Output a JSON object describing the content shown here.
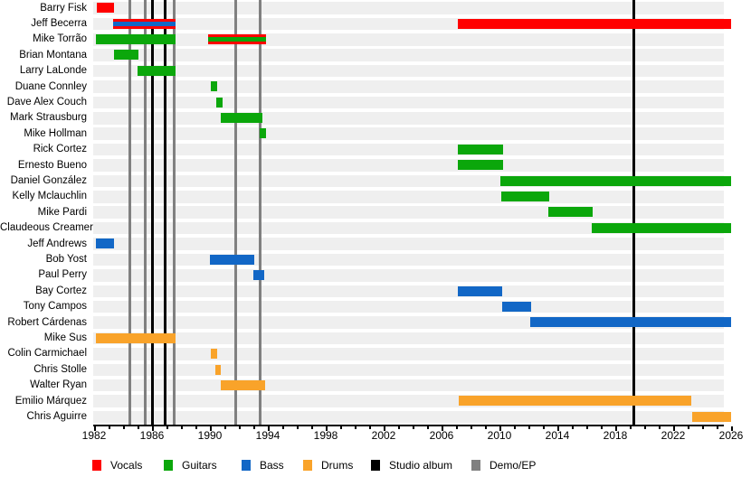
{
  "chart_data": {
    "type": "timeline",
    "description": "Band members timeline (gantt-style) with instrument roles and release event lines",
    "axis": {
      "min": 1982,
      "max": 2026,
      "minor_step": 1,
      "major_step": 4,
      "tick_labels": [
        "1982",
        "1986",
        "1990",
        "1994",
        "1998",
        "2002",
        "2006",
        "2010",
        "2014",
        "2018",
        "2022",
        "2026"
      ]
    },
    "legend": [
      {
        "role": "vocals",
        "label": "Vocals",
        "color": "#ff0000"
      },
      {
        "role": "guitars",
        "label": "Guitars",
        "color": "#0ba70b"
      },
      {
        "role": "bass",
        "label": "Bass",
        "color": "#1267c6"
      },
      {
        "role": "drums",
        "label": "Drums",
        "color": "#f9a32a"
      },
      {
        "role": "studio_album",
        "label": "Studio album",
        "color": "#000000"
      },
      {
        "role": "demo_ep",
        "label": "Demo/EP",
        "color": "#808080"
      }
    ],
    "members": [
      {
        "name": "Barry Fisk",
        "periods": [
          {
            "role": "vocals",
            "start": 1982.2,
            "end": 1983.4
          }
        ]
      },
      {
        "name": "Jeff Becerra",
        "periods": [
          {
            "role": "vocals",
            "stripe": "bass",
            "start": 1983.3,
            "end": 1987.6
          },
          {
            "role": "vocals",
            "start": 2007.15,
            "end": 2026,
            "open_end": true
          }
        ]
      },
      {
        "name": "Mike Torrão",
        "periods": [
          {
            "role": "guitars",
            "start": 1982.1,
            "end": 1987.6
          },
          {
            "role": "vocals",
            "stripe": "guitars",
            "start": 1989.9,
            "end": 1993.9
          }
        ]
      },
      {
        "name": "Brian Montana",
        "periods": [
          {
            "role": "guitars",
            "start": 1983.4,
            "end": 1985.05
          }
        ]
      },
      {
        "name": "Larry LaLonde",
        "periods": [
          {
            "role": "guitars",
            "start": 1985.0,
            "end": 1987.6
          }
        ]
      },
      {
        "name": "Duane Connley",
        "periods": [
          {
            "role": "guitars",
            "start": 1990.05,
            "end": 1990.5
          }
        ]
      },
      {
        "name": "Dave Alex Couch",
        "periods": [
          {
            "role": "guitars",
            "start": 1990.45,
            "end": 1990.85
          }
        ]
      },
      {
        "name": "Mark Strausburg",
        "periods": [
          {
            "role": "guitars",
            "start": 1990.75,
            "end": 1993.6
          }
        ]
      },
      {
        "name": "Mike Hollman",
        "periods": [
          {
            "role": "guitars",
            "start": 1993.45,
            "end": 1993.9
          }
        ]
      },
      {
        "name": "Rick Cortez",
        "periods": [
          {
            "role": "guitars",
            "start": 2007.15,
            "end": 2010.25
          }
        ]
      },
      {
        "name": "Ernesto Bueno",
        "periods": [
          {
            "role": "guitars",
            "start": 2007.15,
            "end": 2010.25
          }
        ]
      },
      {
        "name": "Daniel González",
        "periods": [
          {
            "role": "guitars",
            "start": 2010.05,
            "end": 2026,
            "open_end": true
          }
        ]
      },
      {
        "name": "Kelly Mclauchlin",
        "periods": [
          {
            "role": "guitars",
            "start": 2010.1,
            "end": 2013.45
          }
        ]
      },
      {
        "name": "Mike Pardi",
        "periods": [
          {
            "role": "guitars",
            "start": 2013.35,
            "end": 2016.45
          }
        ]
      },
      {
        "name": "Claudeous Creamer",
        "periods": [
          {
            "role": "guitars",
            "start": 2016.4,
            "end": 2026,
            "open_end": true
          }
        ]
      },
      {
        "name": "Jeff Andrews",
        "periods": [
          {
            "role": "bass",
            "start": 1982.1,
            "end": 1983.4
          }
        ]
      },
      {
        "name": "Bob Yost",
        "periods": [
          {
            "role": "bass",
            "start": 1990.0,
            "end": 1993.05
          }
        ]
      },
      {
        "name": "Paul Perry",
        "periods": [
          {
            "role": "bass",
            "start": 1993.0,
            "end": 1993.75
          }
        ]
      },
      {
        "name": "Bay Cortez",
        "periods": [
          {
            "role": "bass",
            "start": 2007.15,
            "end": 2010.2
          }
        ]
      },
      {
        "name": "Tony Campos",
        "periods": [
          {
            "role": "bass",
            "start": 2010.2,
            "end": 2012.2
          }
        ]
      },
      {
        "name": "Robert Cárdenas",
        "periods": [
          {
            "role": "bass",
            "start": 2012.15,
            "end": 2026,
            "open_end": true
          }
        ]
      },
      {
        "name": "Mike Sus",
        "periods": [
          {
            "role": "drums",
            "start": 1982.1,
            "end": 1987.6
          }
        ]
      },
      {
        "name": "Colin Carmichael",
        "periods": [
          {
            "role": "drums",
            "start": 1990.05,
            "end": 1990.5
          }
        ]
      },
      {
        "name": "Chris Stolle",
        "periods": [
          {
            "role": "drums",
            "start": 1990.4,
            "end": 1990.75
          }
        ]
      },
      {
        "name": "Walter Ryan",
        "periods": [
          {
            "role": "drums",
            "start": 1990.75,
            "end": 1993.8
          }
        ]
      },
      {
        "name": "Emilio Márquez",
        "periods": [
          {
            "role": "drums",
            "start": 2007.2,
            "end": 2023.25
          }
        ]
      },
      {
        "name": "Chris Aguirre",
        "periods": [
          {
            "role": "drums",
            "start": 2023.3,
            "end": 2026,
            "open_end": true
          }
        ]
      }
    ],
    "events": [
      {
        "year": 1984.45,
        "type": "demo_ep"
      },
      {
        "year": 1985.5,
        "type": "demo_ep"
      },
      {
        "year": 1986.0,
        "type": "studio_album"
      },
      {
        "year": 1986.9,
        "type": "studio_album"
      },
      {
        "year": 1987.55,
        "type": "demo_ep"
      },
      {
        "year": 1991.75,
        "type": "demo_ep"
      },
      {
        "year": 1993.45,
        "type": "demo_ep"
      },
      {
        "year": 2019.3,
        "type": "studio_album"
      }
    ]
  }
}
